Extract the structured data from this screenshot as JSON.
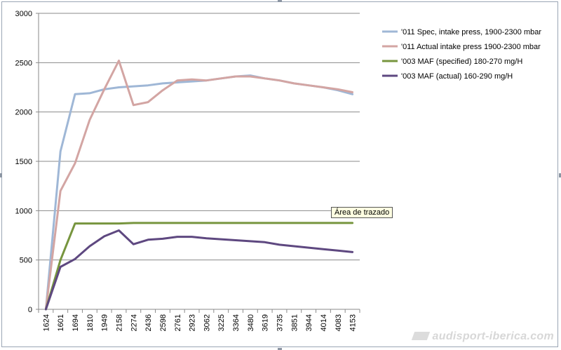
{
  "chart_data": {
    "type": "line",
    "x": [
      "1624",
      "1601",
      "1694",
      "1810",
      "1949",
      "2158",
      "2274",
      "2436",
      "2598",
      "2761",
      "2923",
      "3062",
      "3225",
      "3364",
      "3480",
      "3619",
      "3735",
      "3851",
      "3944",
      "4014",
      "4083",
      "4153"
    ],
    "x_tick_labels": [
      "1624",
      "1601",
      "1694",
      "1810",
      "1949",
      "2158",
      "2274",
      "2436",
      "2598",
      "2761",
      "2923",
      "3062",
      "3225",
      "3364",
      "3480",
      "3619",
      "3735",
      "3851",
      "3944",
      "4014",
      "4083",
      "4153"
    ],
    "y_ticks": [
      0,
      500,
      1000,
      1500,
      2000,
      2500,
      3000
    ],
    "ylim": [
      0,
      3000
    ],
    "grid": true,
    "legend_position": "right",
    "series": [
      {
        "name": "'011 Spec, intake press, 1900-2300 mbar",
        "color": "#9fb7d6",
        "values": [
          0,
          1600,
          2180,
          2190,
          2230,
          2250,
          2260,
          2270,
          2290,
          2300,
          2310,
          2320,
          2340,
          2360,
          2370,
          2340,
          2320,
          2290,
          2270,
          2250,
          2220,
          2180
        ]
      },
      {
        "name": "'011 Actual intake press 1900-2300 mbar",
        "color": "#d3a5a3",
        "values": [
          0,
          1200,
          1480,
          1920,
          2230,
          2520,
          2070,
          2100,
          2220,
          2320,
          2330,
          2320,
          2340,
          2360,
          2360,
          2340,
          2320,
          2290,
          2270,
          2250,
          2230,
          2200
        ]
      },
      {
        "name": "'003 MAF (specified) 180-270 mg/H",
        "color": "#77953e",
        "values": [
          0,
          500,
          870,
          870,
          870,
          870,
          875,
          875,
          875,
          875,
          875,
          875,
          875,
          875,
          875,
          875,
          875,
          875,
          875,
          875,
          875,
          875
        ]
      },
      {
        "name": "'003 MAF (actual)  160-290 mg/H",
        "color": "#5e4880",
        "values": [
          0,
          430,
          510,
          640,
          740,
          800,
          660,
          705,
          715,
          735,
          735,
          720,
          710,
          700,
          690,
          680,
          655,
          640,
          625,
          610,
          595,
          580
        ]
      }
    ]
  },
  "tooltip": {
    "text": "Área de trazado"
  },
  "watermark": {
    "text": "audisport-iberica.com"
  }
}
